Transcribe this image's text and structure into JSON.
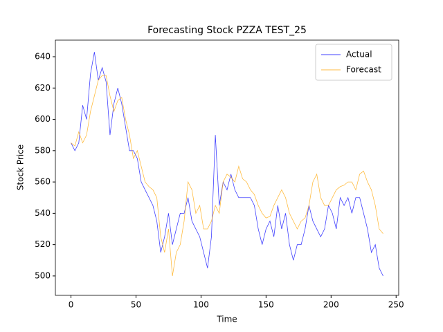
{
  "chart_data": {
    "type": "line",
    "title": "Forecasting Stock PZZA TEST_25",
    "x_label": "Time",
    "y_label": "Stock Price",
    "x": [
      0,
      3,
      6,
      9,
      12,
      15,
      18,
      21,
      24,
      27,
      30,
      33,
      36,
      39,
      42,
      45,
      48,
      51,
      54,
      57,
      60,
      63,
      66,
      69,
      72,
      75,
      78,
      81,
      84,
      87,
      90,
      93,
      96,
      99,
      102,
      105,
      108,
      111,
      114,
      117,
      120,
      123,
      126,
      129,
      132,
      135,
      138,
      141,
      144,
      147,
      150,
      153,
      156,
      159,
      162,
      165,
      168,
      171,
      174,
      177,
      180,
      183,
      186,
      189,
      192,
      195,
      198,
      201,
      204,
      207,
      210,
      213,
      216,
      219,
      222,
      225,
      228,
      231,
      234,
      237,
      240
    ],
    "series": [
      {
        "name": "Actual",
        "color": "#0000ff",
        "values": [
          585,
          580,
          585,
          609,
          600,
          629,
          643,
          625,
          633,
          624,
          590,
          610,
          620,
          610,
          595,
          580,
          580,
          575,
          560,
          555,
          550,
          545,
          535,
          515,
          525,
          540,
          520,
          530,
          540,
          540,
          550,
          535,
          530,
          525,
          515,
          505,
          525,
          590,
          545,
          560,
          555,
          565,
          555,
          550,
          550,
          550,
          550,
          545,
          530,
          520,
          530,
          535,
          525,
          545,
          530,
          540,
          520,
          510,
          520,
          520,
          530,
          545,
          535,
          530,
          525,
          530,
          545,
          540,
          530,
          550,
          545,
          550,
          540,
          550,
          550,
          540,
          530,
          515,
          520,
          505,
          500
        ]
      },
      {
        "name": "Forecast",
        "color": "#ffa500",
        "values": [
          585,
          583,
          592,
          585,
          590,
          605,
          615,
          625,
          628,
          628,
          615,
          605,
          612,
          614,
          600,
          590,
          575,
          580,
          570,
          560,
          557,
          555,
          550,
          525,
          515,
          530,
          500,
          515,
          520,
          535,
          560,
          555,
          540,
          545,
          530,
          530,
          535,
          545,
          540,
          560,
          565,
          563,
          560,
          570,
          562,
          560,
          555,
          552,
          545,
          540,
          537,
          538,
          545,
          550,
          555,
          550,
          540,
          535,
          530,
          535,
          537,
          545,
          560,
          565,
          550,
          545,
          545,
          550,
          555,
          557,
          558,
          560,
          560,
          555,
          565,
          567,
          560,
          555,
          545,
          530,
          527
        ]
      }
    ],
    "xlim": [
      -12,
      252
    ],
    "ylim": [
      487.6,
      650.6
    ],
    "xticks": [
      0,
      50,
      100,
      150,
      200,
      250
    ],
    "yticks": [
      500,
      520,
      540,
      560,
      580,
      600,
      620,
      640
    ],
    "legend": "upper right"
  }
}
